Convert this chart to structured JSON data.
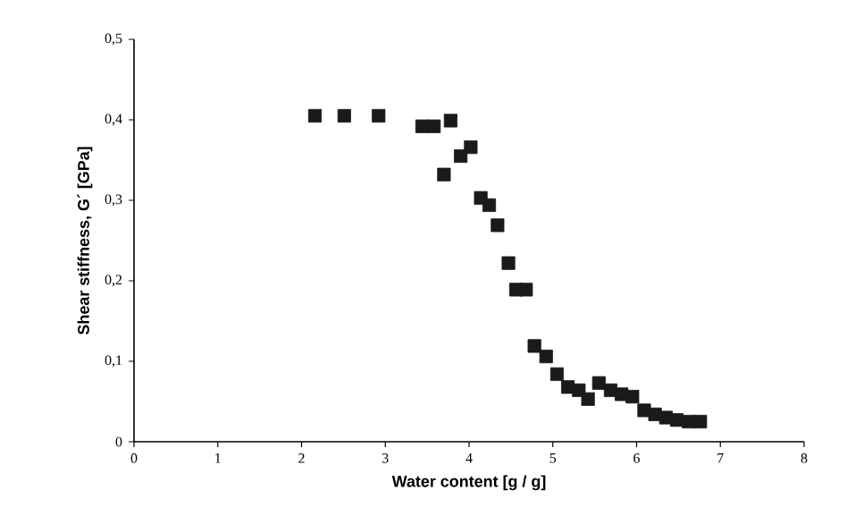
{
  "chart_data": {
    "type": "scatter",
    "xlabel": "Water content [g / g]",
    "ylabel": "Shear stiffness, G´ [GPa]",
    "x": [
      2.16,
      2.51,
      2.92,
      3.44,
      3.58,
      3.78,
      3.7,
      3.9,
      4.02,
      4.14,
      4.24,
      4.34,
      4.47,
      4.56,
      4.68,
      4.78,
      4.92,
      5.05,
      5.18,
      5.31,
      5.42,
      5.55,
      5.69,
      5.82,
      5.95,
      6.09,
      6.22,
      6.35,
      6.48,
      6.62,
      6.76
    ],
    "series": [
      {
        "color": "#1a1a1a",
        "values": [
          0.405,
          0.405,
          0.405,
          0.392,
          0.392,
          0.399,
          0.332,
          0.355,
          0.366,
          0.303,
          0.294,
          0.269,
          0.222,
          0.189,
          0.189,
          0.119,
          0.106,
          0.084,
          0.068,
          0.064,
          0.053,
          0.073,
          0.064,
          0.059,
          0.056,
          0.039,
          0.034,
          0.03,
          0.027,
          0.025,
          0.025
        ]
      }
    ],
    "xlim": [
      0,
      8
    ],
    "ylim": [
      0,
      0.5
    ],
    "xticks": [
      0,
      1,
      2,
      3,
      4,
      5,
      6,
      7,
      8
    ],
    "yticks": [
      0,
      {
        "value": 0.1,
        "label": "0,1"
      },
      {
        "value": 0.2,
        "label": "0,2"
      },
      {
        "value": 0.3,
        "label": "0,3"
      },
      {
        "value": 0.4,
        "label": "0,4"
      },
      {
        "value": 0.5,
        "label": "0,5"
      }
    ],
    "marker": "square",
    "grid": false
  }
}
